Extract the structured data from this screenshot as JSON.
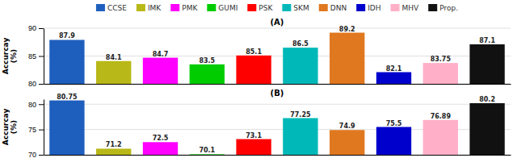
{
  "chart_data": [
    {
      "type": "bar",
      "title": "(A)",
      "y_label": "Accurcay\n(%)",
      "categories": [
        "CCSE",
        "IMK",
        "PMK",
        "GUMI",
        "PSK",
        "SKM",
        "DNN",
        "IDH",
        "MHV",
        "Prop."
      ],
      "values": [
        87.9,
        84.1,
        84.7,
        83.5,
        85.1,
        86.5,
        89.2,
        82.1,
        83.75,
        87.1
      ],
      "colors": [
        "#1e5fbe",
        "#b8b818",
        "#ff00ff",
        "#00cc00",
        "#ff0000",
        "#00b8b8",
        "#e07820",
        "#0000cc",
        "#ffb0c8",
        "#111111"
      ],
      "ylim": [
        80,
        90
      ],
      "yticks": [
        80,
        85,
        90
      ],
      "grid": true,
      "data_labels": true,
      "tick_labels": "y",
      "legend": "top"
    },
    {
      "type": "bar",
      "title": "(B)",
      "y_label": "Accurcay\n(%)",
      "categories": [
        "CCSE",
        "IMK",
        "PMK",
        "GUMI",
        "PSK",
        "SKM",
        "DNN",
        "IDH",
        "MHV",
        "Prop."
      ],
      "values": [
        80.75,
        71.2,
        72.5,
        70.1,
        73.1,
        77.25,
        74.9,
        75.5,
        76.89,
        80.2
      ],
      "colors": [
        "#1e5fbe",
        "#b8b818",
        "#ff00ff",
        "#00cc00",
        "#ff0000",
        "#00b8b8",
        "#e07820",
        "#0000cc",
        "#ffb0c8",
        "#111111"
      ],
      "ylim": [
        70,
        81
      ],
      "yticks": [
        70,
        75,
        80
      ],
      "grid": true,
      "data_labels": true,
      "tick_labels": "y"
    }
  ]
}
